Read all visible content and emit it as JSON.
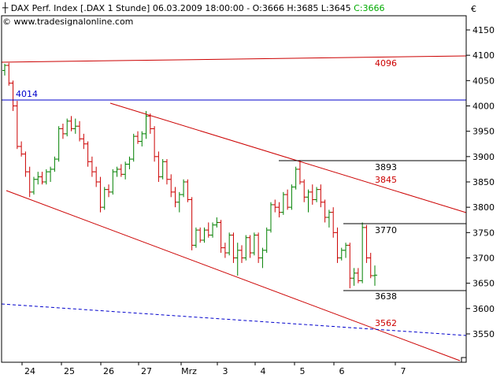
{
  "header": {
    "title": "DAX Perf. Index [.DAX  1 Stunde] 06.03.2009 18:00:00 - O:3666 H:3685 L:3645",
    "close_label": "C:3666",
    "url": "www.tradesignalonline.com",
    "currency": "€"
  },
  "colors": {
    "up": "#008000",
    "down": "#cc0000",
    "trend": "#cc0000",
    "level_4014": "#0000cc",
    "ma": "#0000cc",
    "hline": "#000000"
  },
  "chart_data": {
    "type": "ohlc",
    "title": "DAX Perf. Index [.DAX  1 Stunde]",
    "ylim": [
      3515,
      4175
    ],
    "y_ticks": [
      3550,
      3600,
      3650,
      3700,
      3750,
      3800,
      3850,
      3900,
      3950,
      4000,
      4050,
      4100,
      4150
    ],
    "x_labels": [
      "24",
      "25",
      "26",
      "27",
      "Mrz",
      "3",
      "4",
      "5",
      "6",
      "7"
    ],
    "bars": [
      [
        4070,
        4083,
        4060,
        4080
      ],
      [
        4080,
        4085,
        4040,
        4045
      ],
      [
        4045,
        4050,
        3990,
        4000
      ],
      [
        4000,
        4010,
        3915,
        3920
      ],
      [
        3920,
        3930,
        3900,
        3905
      ],
      [
        3905,
        3910,
        3860,
        3870
      ],
      [
        3870,
        3880,
        3820,
        3830
      ],
      [
        3830,
        3860,
        3825,
        3855
      ],
      [
        3855,
        3870,
        3845,
        3860
      ],
      [
        3860,
        3870,
        3845,
        3850
      ],
      [
        3850,
        3875,
        3845,
        3870
      ],
      [
        3870,
        3880,
        3850,
        3875
      ],
      [
        3875,
        3900,
        3870,
        3895
      ],
      [
        3895,
        3960,
        3890,
        3955
      ],
      [
        3955,
        3965,
        3935,
        3945
      ],
      [
        3945,
        3975,
        3940,
        3970
      ],
      [
        3970,
        3980,
        3950,
        3955
      ],
      [
        3955,
        3975,
        3945,
        3960
      ],
      [
        3960,
        3970,
        3930,
        3935
      ],
      [
        3935,
        3945,
        3915,
        3925
      ],
      [
        3925,
        3930,
        3880,
        3890
      ],
      [
        3890,
        3900,
        3860,
        3870
      ],
      [
        3870,
        3880,
        3840,
        3850
      ],
      [
        3850,
        3860,
        3790,
        3800
      ],
      [
        3800,
        3840,
        3795,
        3835
      ],
      [
        3835,
        3845,
        3820,
        3830
      ],
      [
        3830,
        3875,
        3825,
        3870
      ],
      [
        3870,
        3880,
        3860,
        3875
      ],
      [
        3875,
        3885,
        3860,
        3865
      ],
      [
        3865,
        3890,
        3855,
        3885
      ],
      [
        3885,
        3900,
        3875,
        3895
      ],
      [
        3895,
        3945,
        3890,
        3940
      ],
      [
        3940,
        3950,
        3925,
        3930
      ],
      [
        3930,
        3950,
        3920,
        3945
      ],
      [
        3945,
        3990,
        3935,
        3980
      ],
      [
        3980,
        3985,
        3945,
        3955
      ],
      [
        3955,
        3960,
        3890,
        3900
      ],
      [
        3900,
        3910,
        3850,
        3860
      ],
      [
        3860,
        3895,
        3855,
        3890
      ],
      [
        3890,
        3895,
        3845,
        3855
      ],
      [
        3855,
        3865,
        3820,
        3830
      ],
      [
        3830,
        3840,
        3800,
        3810
      ],
      [
        3810,
        3830,
        3790,
        3825
      ],
      [
        3825,
        3855,
        3820,
        3850
      ],
      [
        3850,
        3855,
        3810,
        3815
      ],
      [
        3815,
        3820,
        3715,
        3725
      ],
      [
        3725,
        3760,
        3720,
        3755
      ],
      [
        3755,
        3760,
        3730,
        3735
      ],
      [
        3735,
        3760,
        3730,
        3755
      ],
      [
        3755,
        3770,
        3740,
        3745
      ],
      [
        3745,
        3770,
        3740,
        3765
      ],
      [
        3765,
        3780,
        3760,
        3770
      ],
      [
        3770,
        3775,
        3710,
        3720
      ],
      [
        3720,
        3730,
        3700,
        3710
      ],
      [
        3710,
        3750,
        3705,
        3745
      ],
      [
        3745,
        3750,
        3690,
        3700
      ],
      [
        3700,
        3730,
        3665,
        3715
      ],
      [
        3715,
        3725,
        3690,
        3700
      ],
      [
        3700,
        3745,
        3695,
        3740
      ],
      [
        3740,
        3745,
        3700,
        3710
      ],
      [
        3710,
        3750,
        3705,
        3745
      ],
      [
        3745,
        3750,
        3690,
        3700
      ],
      [
        3700,
        3720,
        3680,
        3715
      ],
      [
        3715,
        3760,
        3710,
        3755
      ],
      [
        3755,
        3810,
        3750,
        3805
      ],
      [
        3805,
        3815,
        3790,
        3800
      ],
      [
        3800,
        3810,
        3780,
        3790
      ],
      [
        3790,
        3830,
        3785,
        3825
      ],
      [
        3825,
        3835,
        3795,
        3800
      ],
      [
        3800,
        3845,
        3795,
        3840
      ],
      [
        3840,
        3880,
        3835,
        3875
      ],
      [
        3875,
        3893,
        3845,
        3850
      ],
      [
        3850,
        3855,
        3810,
        3820
      ],
      [
        3820,
        3835,
        3790,
        3830
      ],
      [
        3830,
        3845,
        3805,
        3815
      ],
      [
        3815,
        3840,
        3810,
        3835
      ],
      [
        3835,
        3845,
        3800,
        3810
      ],
      [
        3810,
        3815,
        3770,
        3780
      ],
      [
        3780,
        3795,
        3760,
        3790
      ],
      [
        3790,
        3800,
        3740,
        3750
      ],
      [
        3750,
        3760,
        3690,
        3700
      ],
      [
        3700,
        3720,
        3695,
        3715
      ],
      [
        3715,
        3730,
        3700,
        3725
      ],
      [
        3725,
        3730,
        3640,
        3660
      ],
      [
        3660,
        3680,
        3645,
        3670
      ],
      [
        3670,
        3680,
        3650,
        3655
      ],
      [
        3655,
        3770,
        3650,
        3760
      ],
      [
        3760,
        3765,
        3690,
        3700
      ],
      [
        3700,
        3710,
        3660,
        3665
      ],
      [
        3665,
        3685,
        3645,
        3666
      ]
    ],
    "annotations": [
      {
        "label": "4096",
        "color": "trend"
      },
      {
        "label": "4014",
        "color": "level_4014"
      },
      {
        "label": "3893",
        "color": "hline"
      },
      {
        "label": "3845",
        "color": "trend"
      },
      {
        "label": "3770",
        "color": "hline"
      },
      {
        "label": "3638",
        "color": "hline"
      },
      {
        "label": "3562",
        "color": "trend"
      }
    ]
  }
}
